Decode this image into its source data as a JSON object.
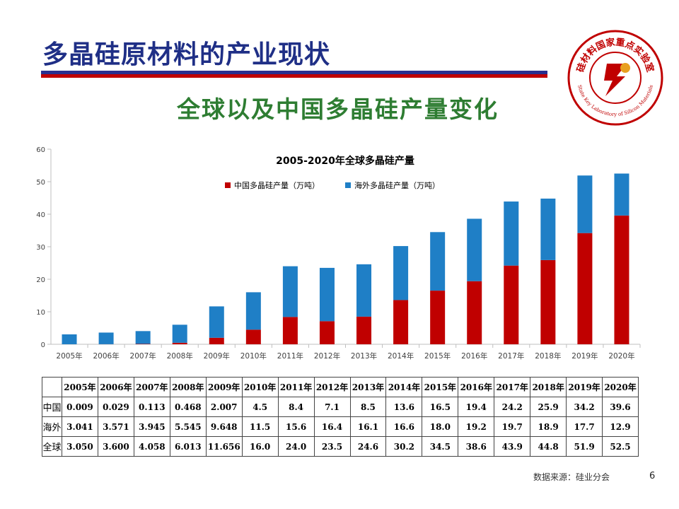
{
  "slide": {
    "title": "多晶硅原材料的产业现状",
    "subtitle": "全球以及中国多晶硅产量变化",
    "source": "数据来源：硅业分会",
    "page_number": "6"
  },
  "logo": {
    "ring_text_cn": "硅材料国家重点实验室",
    "ring_text_en": "State Key Laboratory of Silicon Materials",
    "colors": {
      "ring": "#c00000",
      "accent": "#e8a020"
    }
  },
  "colors": {
    "title": "#1f2f86",
    "subtitle": "#2e7d32",
    "china_series": "#c00000",
    "overseas_series": "#1f7fc6"
  },
  "chart_data": {
    "type": "bar",
    "stacked": true,
    "title": "2005-2020年全球多晶硅产量",
    "categories": [
      "2005年",
      "2006年",
      "2007年",
      "2008年",
      "2009年",
      "2010年",
      "2011年",
      "2012年",
      "2013年",
      "2014年",
      "2015年",
      "2016年",
      "2017年",
      "2018年",
      "2019年",
      "2020年"
    ],
    "series": [
      {
        "name": "中国多晶硅产量（万吨）",
        "color": "#c00000",
        "values": [
          0.009,
          0.029,
          0.113,
          0.468,
          2.007,
          4.5,
          8.4,
          7.1,
          8.5,
          13.6,
          16.5,
          19.4,
          24.2,
          25.9,
          34.2,
          39.6
        ]
      },
      {
        "name": "海外多晶硅产量（万吨）",
        "color": "#1f7fc6",
        "values": [
          3.041,
          3.571,
          3.945,
          5.545,
          9.648,
          11.5,
          15.6,
          16.4,
          16.1,
          16.6,
          18.0,
          19.2,
          19.7,
          18.9,
          17.7,
          12.9
        ]
      }
    ],
    "ylim": [
      0,
      60
    ],
    "yticks": [
      "0",
      "10",
      "20",
      "30",
      "40",
      "50",
      "60"
    ],
    "legend_position": "top-center",
    "grid": false
  },
  "table": {
    "headers": [
      "2005年",
      "2006年",
      "2007年",
      "2008年",
      "2009年",
      "2010年",
      "2011年",
      "2012年",
      "2013年",
      "2014年",
      "2015年",
      "2016年",
      "2017年",
      "2018年",
      "2019年",
      "2020年"
    ],
    "rows": [
      {
        "label": "中国",
        "values": [
          "0.009",
          "0.029",
          "0.113",
          "0.468",
          "2.007",
          "4.5",
          "8.4",
          "7.1",
          "8.5",
          "13.6",
          "16.5",
          "19.4",
          "24.2",
          "25.9",
          "34.2",
          "39.6"
        ]
      },
      {
        "label": "海外",
        "values": [
          "3.041",
          "3.571",
          "3.945",
          "5.545",
          "9.648",
          "11.5",
          "15.6",
          "16.4",
          "16.1",
          "16.6",
          "18.0",
          "19.2",
          "19.7",
          "18.9",
          "17.7",
          "12.9"
        ]
      },
      {
        "label": "全球",
        "values": [
          "3.050",
          "3.600",
          "4.058",
          "6.013",
          "11.656",
          "16.0",
          "24.0",
          "23.5",
          "24.6",
          "30.2",
          "34.5",
          "38.6",
          "43.9",
          "44.8",
          "51.9",
          "52.5"
        ]
      }
    ]
  }
}
